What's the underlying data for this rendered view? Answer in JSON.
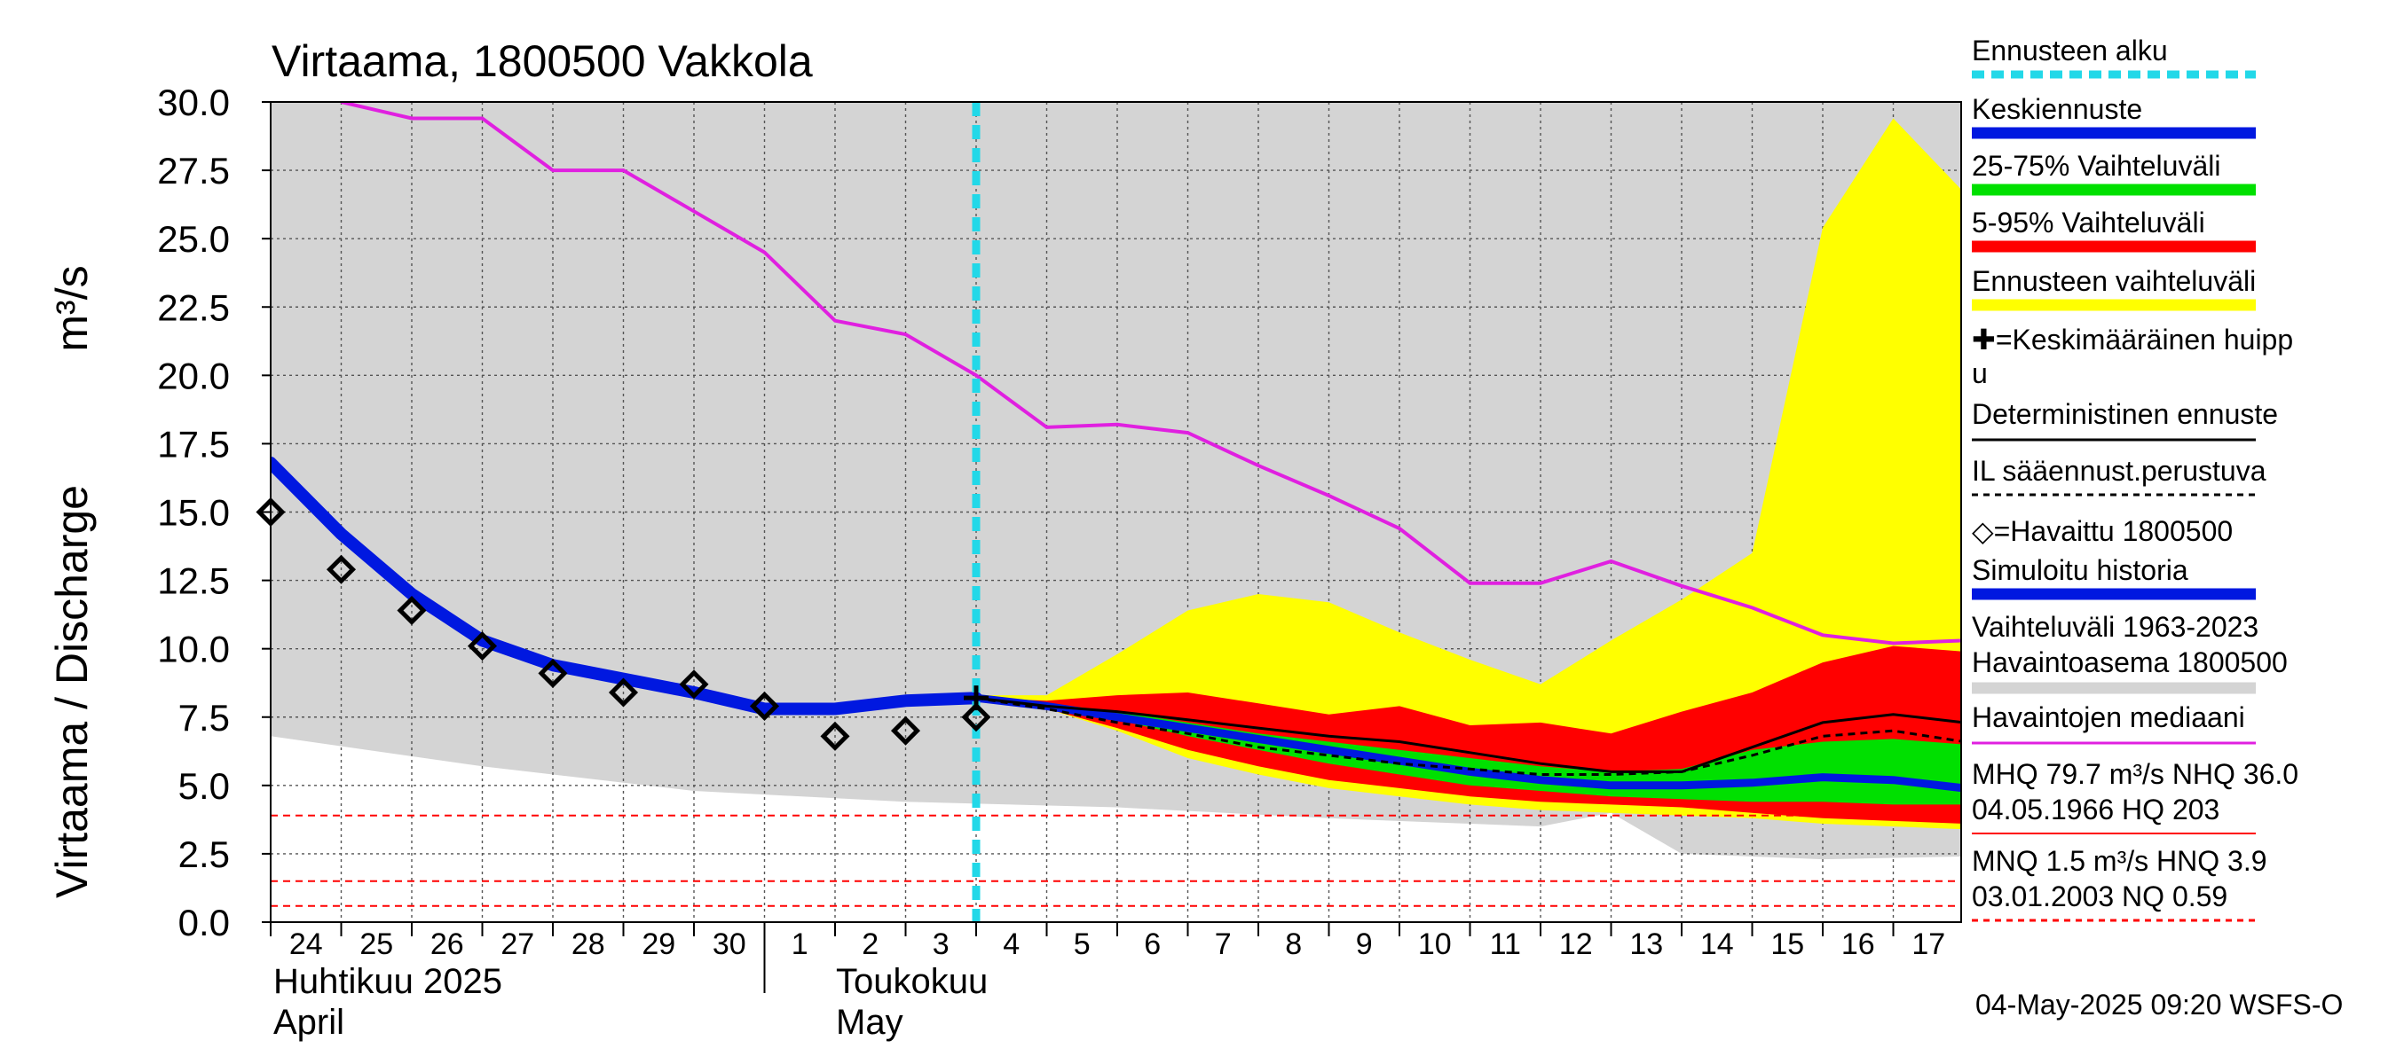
{
  "title": "Virtaama, 1800500 Vakkola",
  "ylabel": "Virtaama / Discharge",
  "yunit": "m³/s",
  "month_labels": [
    {
      "fi": "Huhtikuu  2025",
      "en": "April"
    },
    {
      "fi": "Toukokuu",
      "en": "May"
    }
  ],
  "footer": "04-May-2025 09:20 WSFS-O",
  "legend": [
    {
      "label": "Ennusteen alku",
      "color": "#22d8e8",
      "style": "dashed"
    },
    {
      "label": "Keskiennuste",
      "color": "#0018e0",
      "style": "solid"
    },
    {
      "label": "25-75% Vaihteluväli",
      "color": "#00e000",
      "style": "solid"
    },
    {
      "label": "5-95% Vaihteluväli",
      "color": "#ff0000",
      "style": "solid"
    },
    {
      "label": "Ennusteen vaihteluväli",
      "color": "#ffff00",
      "style": "solid"
    },
    {
      "label": "✚=Keskimääräinen huipp",
      "label2": "u",
      "color": "",
      "style": "none"
    },
    {
      "label": "Deterministinen ennuste",
      "color": "#000000",
      "style": "thin"
    },
    {
      "label": "IL sääennust.perustuva",
      "color": "#000000",
      "style": "dotted"
    },
    {
      "label": "◇=Havaittu 1800500",
      "color": "",
      "style": "none"
    },
    {
      "label": "Simuloitu historia",
      "color": "#0018e0",
      "style": "solid"
    },
    {
      "label": "Vaihteluväli 1963-2023",
      "label2": " Havaintoasema 1800500",
      "color": "#d4d4d4",
      "style": "solid"
    },
    {
      "label": "Havaintojen mediaani",
      "color": "#e020e0",
      "style": "thin"
    },
    {
      "label": "MHQ 79.7 m³/s NHQ 36.0",
      "label2": "04.05.1966 HQ  203",
      "color": "#ff0000",
      "style": "thinsolid"
    },
    {
      "label": "MNQ  1.5 m³/s HNQ  3.9",
      "label2": "03.01.2003 NQ 0.59",
      "color": "#ff0000",
      "style": "dotted"
    }
  ],
  "chart_data": {
    "type": "area",
    "title": "Virtaama, 1800500 Vakkola",
    "ylabel": "Virtaama / Discharge  m³/s",
    "ylim": [
      0,
      30
    ],
    "yticks": [
      "0.0",
      "2.5",
      "5.0",
      "7.5",
      "10.0",
      "12.5",
      "15.0",
      "17.5",
      "20.0",
      "22.5",
      "25.0",
      "27.5",
      "30.0"
    ],
    "x_start": "2025-04-24",
    "x_end": "2025-05-18",
    "day_labels": [
      "24",
      "25",
      "26",
      "27",
      "28",
      "29",
      "30",
      "1",
      "2",
      "3",
      "4",
      "5",
      "6",
      "7",
      "8",
      "9",
      "10",
      "11",
      "12",
      "13",
      "14",
      "15",
      "16",
      "17"
    ],
    "forecast_start": "2025-05-04",
    "grid": true,
    "history_range": {
      "dates": [
        "2025-04-24",
        "2025-04-27",
        "2025-04-30",
        "2025-05-03",
        "2025-05-06",
        "2025-05-09",
        "2025-05-12",
        "2025-05-13",
        "2025-05-14",
        "2025-05-16",
        "2025-05-18"
      ],
      "low": [
        6.8,
        5.7,
        4.8,
        4.4,
        4.2,
        3.8,
        3.5,
        4.0,
        2.5,
        2.3,
        2.4
      ],
      "high": [
        30,
        30,
        30,
        30,
        30,
        30,
        30,
        30,
        30,
        30,
        30
      ]
    },
    "median": {
      "dates": [
        "2025-04-25",
        "2025-04-26",
        "2025-04-27",
        "2025-04-28",
        "2025-04-29",
        "2025-04-30",
        "2025-05-01",
        "2025-05-02",
        "2025-05-03",
        "2025-05-04",
        "2025-05-05",
        "2025-05-06",
        "2025-05-07",
        "2025-05-08",
        "2025-05-09",
        "2025-05-10",
        "2025-05-11",
        "2025-05-12",
        "2025-05-13",
        "2025-05-14",
        "2025-05-15",
        "2025-05-16",
        "2025-05-17",
        "2025-05-18"
      ],
      "values": [
        30.0,
        29.4,
        29.4,
        27.5,
        27.5,
        26.0,
        24.5,
        22.0,
        21.5,
        20.0,
        18.1,
        18.2,
        17.9,
        16.7,
        15.6,
        14.4,
        12.4,
        12.4,
        13.2,
        12.3,
        11.5,
        10.5,
        10.2,
        10.3
      ]
    },
    "observed": {
      "dates": [
        "2025-04-24",
        "2025-04-25",
        "2025-04-26",
        "2025-04-27",
        "2025-04-28",
        "2025-04-29",
        "2025-04-30",
        "2025-05-01",
        "2025-05-02",
        "2025-05-03",
        "2025-05-04"
      ],
      "values": [
        15.0,
        12.9,
        11.4,
        10.1,
        9.1,
        8.4,
        8.7,
        7.9,
        6.8,
        7.0,
        7.5
      ]
    },
    "simulated": {
      "dates": [
        "2025-04-24",
        "2025-04-25",
        "2025-04-26",
        "2025-04-27",
        "2025-04-28",
        "2025-04-29",
        "2025-04-30",
        "2025-05-01",
        "2025-05-02",
        "2025-05-03",
        "2025-05-04"
      ],
      "values": [
        16.8,
        14.2,
        12.0,
        10.3,
        9.4,
        8.9,
        8.4,
        7.8,
        7.8,
        8.1,
        8.2
      ]
    },
    "forecast_dates": [
      "2025-05-04",
      "2025-05-05",
      "2025-05-06",
      "2025-05-07",
      "2025-05-08",
      "2025-05-09",
      "2025-05-10",
      "2025-05-11",
      "2025-05-12",
      "2025-05-13",
      "2025-05-14",
      "2025-05-15",
      "2025-05-16",
      "2025-05-17",
      "2025-05-18"
    ],
    "forecast_range": {
      "low": [
        8.2,
        7.8,
        7.0,
        6.0,
        5.4,
        4.9,
        4.6,
        4.3,
        4.1,
        4.0,
        3.9,
        3.8,
        3.6,
        3.5,
        3.4
      ],
      "high": [
        8.3,
        8.3,
        9.8,
        11.4,
        12.0,
        11.7,
        10.6,
        9.6,
        8.7,
        10.3,
        11.8,
        13.5,
        25.4,
        29.4,
        26.7
      ]
    },
    "p5_95": {
      "low": [
        8.2,
        7.8,
        7.1,
        6.3,
        5.7,
        5.2,
        4.9,
        4.6,
        4.4,
        4.3,
        4.2,
        4.0,
        3.8,
        3.7,
        3.6
      ],
      "high": [
        8.2,
        8.1,
        8.3,
        8.4,
        8.0,
        7.6,
        7.9,
        7.2,
        7.3,
        6.9,
        7.7,
        8.4,
        9.5,
        10.1,
        9.9
      ]
    },
    "p25_75": {
      "low": [
        8.2,
        7.8,
        7.4,
        6.8,
        6.3,
        5.8,
        5.4,
        5.0,
        4.8,
        4.6,
        4.5,
        4.4,
        4.4,
        4.3,
        4.3
      ],
      "high": [
        8.2,
        8.0,
        7.7,
        7.3,
        6.9,
        6.6,
        6.3,
        6.0,
        5.7,
        5.5,
        5.6,
        6.3,
        6.6,
        6.7,
        6.5
      ]
    },
    "mean_forecast": [
      8.2,
      7.9,
      7.5,
      7.1,
      6.7,
      6.3,
      5.9,
      5.5,
      5.2,
      5.0,
      5.0,
      5.1,
      5.3,
      5.2,
      4.9
    ],
    "deterministic": [
      8.2,
      7.9,
      7.7,
      7.4,
      7.1,
      6.8,
      6.6,
      6.2,
      5.8,
      5.5,
      5.5,
      6.4,
      7.3,
      7.6,
      7.3
    ],
    "il_forecast": [
      8.2,
      7.8,
      7.3,
      6.9,
      6.4,
      6.1,
      5.8,
      5.6,
      5.4,
      5.4,
      5.5,
      6.1,
      6.8,
      7.0,
      6.6
    ],
    "mean_peak": {
      "date": "2025-05-04",
      "value": 8.2
    },
    "reference_lines": [
      {
        "label": "MHQ/HQ line",
        "value": 3.9,
        "style": "dashed"
      },
      {
        "label": "MNQ",
        "value": 1.5,
        "style": "dashed"
      },
      {
        "label": "NQ",
        "value": 0.59,
        "style": "dashed"
      }
    ]
  }
}
